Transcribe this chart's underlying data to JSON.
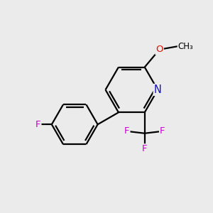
{
  "background_color": "#ebebeb",
  "bond_color": "#000000",
  "N_color": "#1010cc",
  "O_color": "#dd1100",
  "F_color": "#cc00cc",
  "font_size": 9.5,
  "dbo": 0.13,
  "figsize": [
    3.0,
    3.0
  ],
  "dpi": 100,
  "xlim": [
    0,
    10
  ],
  "ylim": [
    0,
    10
  ]
}
